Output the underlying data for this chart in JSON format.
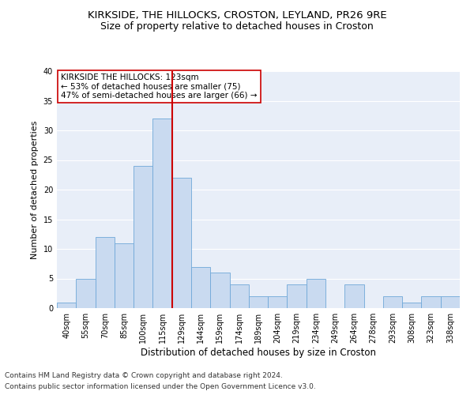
{
  "title1": "KIRKSIDE, THE HILLOCKS, CROSTON, LEYLAND, PR26 9RE",
  "title2": "Size of property relative to detached houses in Croston",
  "xlabel": "Distribution of detached houses by size in Croston",
  "ylabel": "Number of detached properties",
  "categories": [
    "40sqm",
    "55sqm",
    "70sqm",
    "85sqm",
    "100sqm",
    "115sqm",
    "129sqm",
    "144sqm",
    "159sqm",
    "174sqm",
    "189sqm",
    "204sqm",
    "219sqm",
    "234sqm",
    "249sqm",
    "264sqm",
    "278sqm",
    "293sqm",
    "308sqm",
    "323sqm",
    "338sqm"
  ],
  "values": [
    1,
    5,
    12,
    11,
    24,
    32,
    22,
    7,
    6,
    4,
    2,
    2,
    4,
    5,
    0,
    4,
    0,
    2,
    1,
    2,
    2
  ],
  "bar_color": "#c9daf0",
  "bar_edge_color": "#6fa8d8",
  "vline_x_idx": 6,
  "vline_color": "#cc0000",
  "annotation_text": "KIRKSIDE THE HILLOCKS: 123sqm\n← 53% of detached houses are smaller (75)\n47% of semi-detached houses are larger (66) →",
  "annotation_box_color": "#ffffff",
  "annotation_box_edge_color": "#cc0000",
  "ylim": [
    0,
    40
  ],
  "yticks": [
    0,
    5,
    10,
    15,
    20,
    25,
    30,
    35,
    40
  ],
  "background_color": "#e8eef8",
  "footer1": "Contains HM Land Registry data © Crown copyright and database right 2024.",
  "footer2": "Contains public sector information licensed under the Open Government Licence v3.0.",
  "title1_fontsize": 9.5,
  "title2_fontsize": 9,
  "xlabel_fontsize": 8.5,
  "ylabel_fontsize": 8,
  "tick_fontsize": 7,
  "annotation_fontsize": 7.5,
  "footer_fontsize": 6.5
}
